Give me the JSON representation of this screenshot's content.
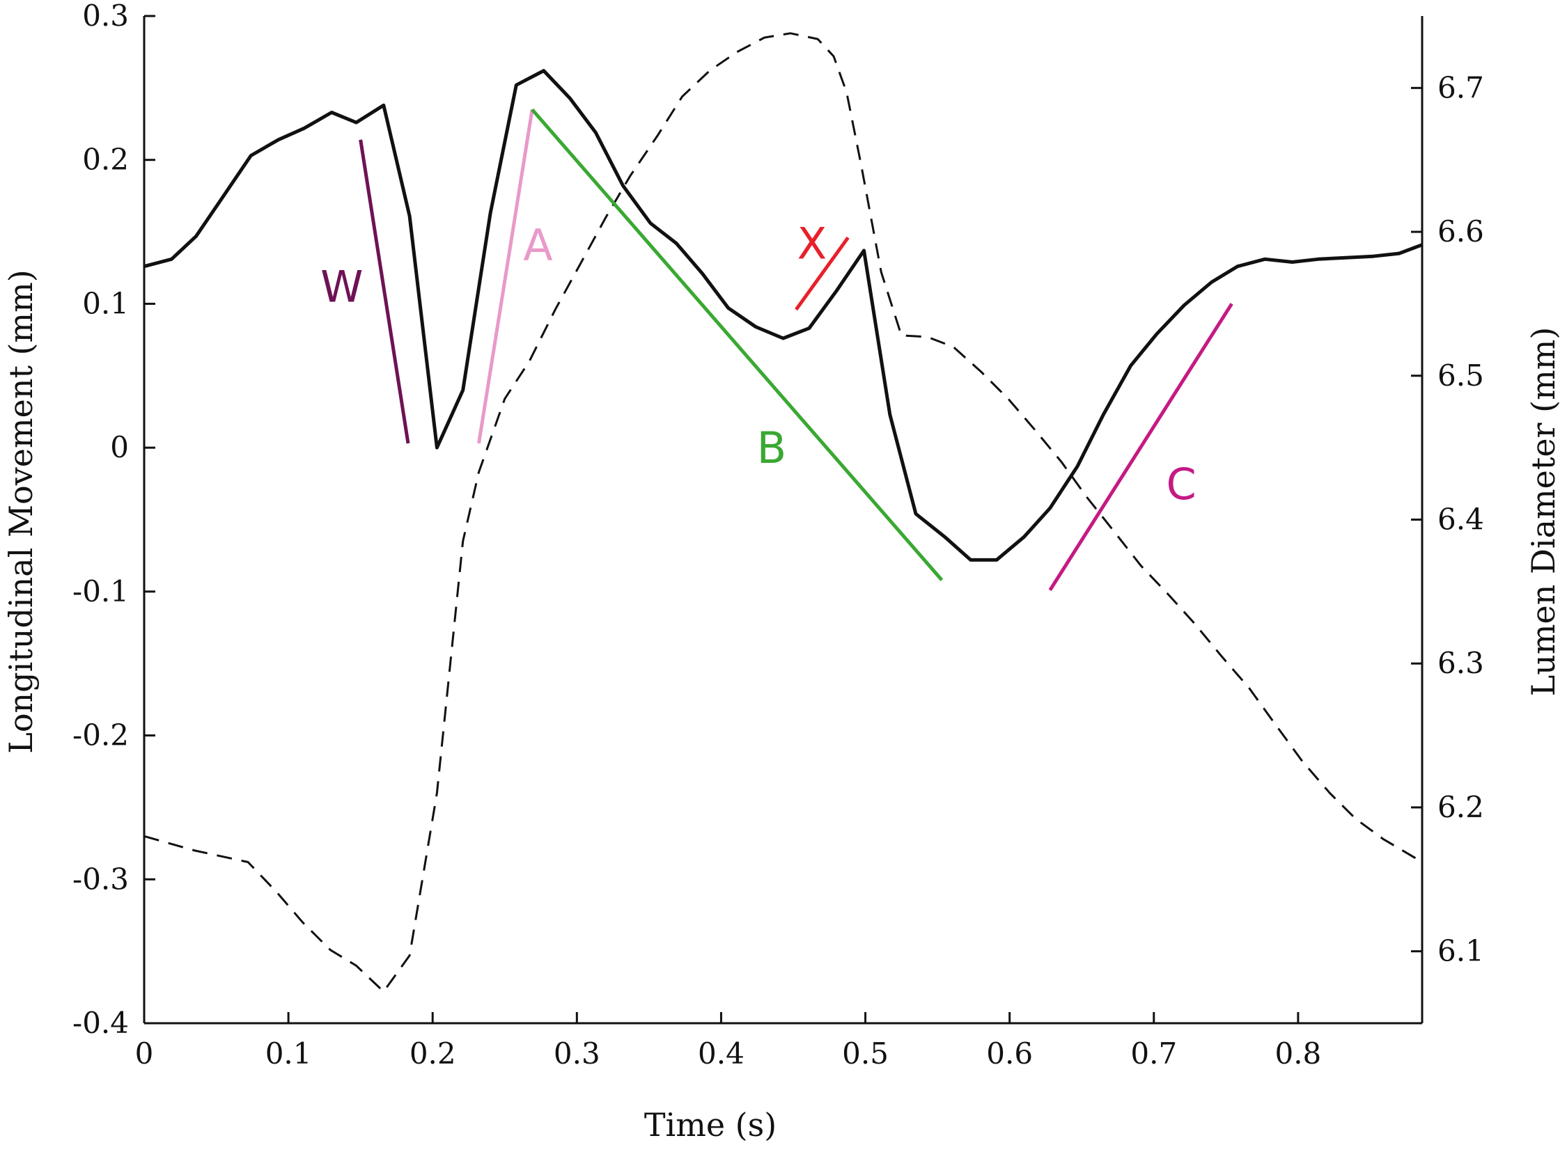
{
  "chart_data": {
    "type": "line",
    "xlabel": "Time (s)",
    "ylabel_left": "Longitudinal Movement (mm)",
    "ylabel_right": "Lumen Diameter (mm)",
    "xlim": [
      0,
      0.886
    ],
    "ylim_left": [
      -0.4,
      0.3
    ],
    "ylim_right": [
      6.05,
      6.75
    ],
    "x_ticks": [
      "0",
      "0.1",
      "0.2",
      "0.3",
      "0.4",
      "0.5",
      "0.6",
      "0.7",
      "0.8"
    ],
    "y_ticks_left": [
      "-0.4",
      "-0.3",
      "-0.2",
      "-0.1",
      "0",
      "0.1",
      "0.2",
      "0.3"
    ],
    "y_ticks_right": [
      "6.1",
      "6.2",
      "6.3",
      "6.4",
      "6.5",
      "6.6",
      "6.7"
    ],
    "grid": false,
    "series": [
      {
        "axis": "left",
        "style": "solid",
        "color": "#111111",
        "points": [
          [
            0.0,
            0.126
          ],
          [
            0.019,
            0.131
          ],
          [
            0.036,
            0.147
          ],
          [
            0.053,
            0.172
          ],
          [
            0.074,
            0.203
          ],
          [
            0.093,
            0.214
          ],
          [
            0.111,
            0.222
          ],
          [
            0.13,
            0.233
          ],
          [
            0.147,
            0.226
          ],
          [
            0.166,
            0.238
          ],
          [
            0.184,
            0.161
          ],
          [
            0.203,
            0.0
          ],
          [
            0.221,
            0.04
          ],
          [
            0.24,
            0.163
          ],
          [
            0.258,
            0.252
          ],
          [
            0.277,
            0.262
          ],
          [
            0.295,
            0.243
          ],
          [
            0.313,
            0.219
          ],
          [
            0.332,
            0.182
          ],
          [
            0.351,
            0.156
          ],
          [
            0.369,
            0.142
          ],
          [
            0.387,
            0.121
          ],
          [
            0.405,
            0.097
          ],
          [
            0.424,
            0.084
          ],
          [
            0.443,
            0.076
          ],
          [
            0.461,
            0.083
          ],
          [
            0.48,
            0.109
          ],
          [
            0.499,
            0.137
          ],
          [
            0.517,
            0.023
          ],
          [
            0.535,
            -0.046
          ],
          [
            0.555,
            -0.062
          ],
          [
            0.573,
            -0.078
          ],
          [
            0.591,
            -0.078
          ],
          [
            0.61,
            -0.062
          ],
          [
            0.628,
            -0.042
          ],
          [
            0.647,
            -0.013
          ],
          [
            0.665,
            0.023
          ],
          [
            0.684,
            0.057
          ],
          [
            0.702,
            0.079
          ],
          [
            0.721,
            0.099
          ],
          [
            0.74,
            0.115
          ],
          [
            0.758,
            0.126
          ],
          [
            0.777,
            0.131
          ],
          [
            0.796,
            0.129
          ],
          [
            0.814,
            0.131
          ],
          [
            0.833,
            0.132
          ],
          [
            0.852,
            0.133
          ],
          [
            0.87,
            0.135
          ],
          [
            0.886,
            0.141
          ]
        ]
      },
      {
        "axis": "right",
        "style": "dashed",
        "color": "#111111",
        "points": [
          [
            0.0,
            6.18
          ],
          [
            0.035,
            6.17
          ],
          [
            0.072,
            6.162
          ],
          [
            0.092,
            6.141
          ],
          [
            0.11,
            6.12
          ],
          [
            0.129,
            6.101
          ],
          [
            0.147,
            6.09
          ],
          [
            0.166,
            6.072
          ],
          [
            0.184,
            6.097
          ],
          [
            0.203,
            6.21
          ],
          [
            0.221,
            6.385
          ],
          [
            0.232,
            6.433
          ],
          [
            0.25,
            6.484
          ],
          [
            0.267,
            6.51
          ],
          [
            0.285,
            6.546
          ],
          [
            0.302,
            6.577
          ],
          [
            0.32,
            6.61
          ],
          [
            0.337,
            6.639
          ],
          [
            0.356,
            6.667
          ],
          [
            0.373,
            6.694
          ],
          [
            0.392,
            6.712
          ],
          [
            0.411,
            6.725
          ],
          [
            0.43,
            6.735
          ],
          [
            0.448,
            6.738
          ],
          [
            0.467,
            6.734
          ],
          [
            0.478,
            6.722
          ],
          [
            0.487,
            6.697
          ],
          [
            0.497,
            6.647
          ],
          [
            0.511,
            6.572
          ],
          [
            0.525,
            6.528
          ],
          [
            0.543,
            6.527
          ],
          [
            0.561,
            6.52
          ],
          [
            0.58,
            6.503
          ],
          [
            0.599,
            6.484
          ],
          [
            0.617,
            6.463
          ],
          [
            0.636,
            6.44
          ],
          [
            0.654,
            6.415
          ],
          [
            0.673,
            6.391
          ],
          [
            0.691,
            6.368
          ],
          [
            0.71,
            6.348
          ],
          [
            0.728,
            6.328
          ],
          [
            0.747,
            6.305
          ],
          [
            0.766,
            6.283
          ],
          [
            0.784,
            6.258
          ],
          [
            0.803,
            6.232
          ],
          [
            0.822,
            6.21
          ],
          [
            0.84,
            6.192
          ],
          [
            0.859,
            6.178
          ],
          [
            0.886,
            6.162
          ]
        ]
      }
    ],
    "segments": [
      {
        "label": "W",
        "color": "#6e1255",
        "x": [
          0.15,
          0.183
        ],
        "y": [
          0.214,
          0.003
        ]
      },
      {
        "label": "A",
        "color": "#e89ac9",
        "x": [
          0.232,
          0.269
        ],
        "y": [
          0.003,
          0.235
        ]
      },
      {
        "label": "B",
        "color": "#3aa832",
        "x": [
          0.269,
          0.553
        ],
        "y": [
          0.235,
          -0.092
        ]
      },
      {
        "label": "X",
        "color": "#e8202a",
        "x": [
          0.452,
          0.488
        ],
        "y": [
          0.096,
          0.146
        ]
      },
      {
        "label": "C",
        "color": "#c41a83",
        "x": [
          0.628,
          0.754
        ],
        "y": [
          -0.099,
          0.1
        ]
      }
    ],
    "annotations": [
      {
        "text": "W",
        "color": "#6e1255",
        "x": 0.137,
        "y": 0.112
      },
      {
        "text": "A",
        "color": "#e89ac9",
        "x": 0.273,
        "y": 0.141
      },
      {
        "text": "B",
        "color": "#3aa832",
        "x": 0.435,
        "y": 0.0
      },
      {
        "text": "X",
        "color": "#e8202a",
        "x": 0.463,
        "y": 0.142
      },
      {
        "text": "C",
        "color": "#c41a83",
        "x": 0.719,
        "y": -0.025
      }
    ]
  }
}
